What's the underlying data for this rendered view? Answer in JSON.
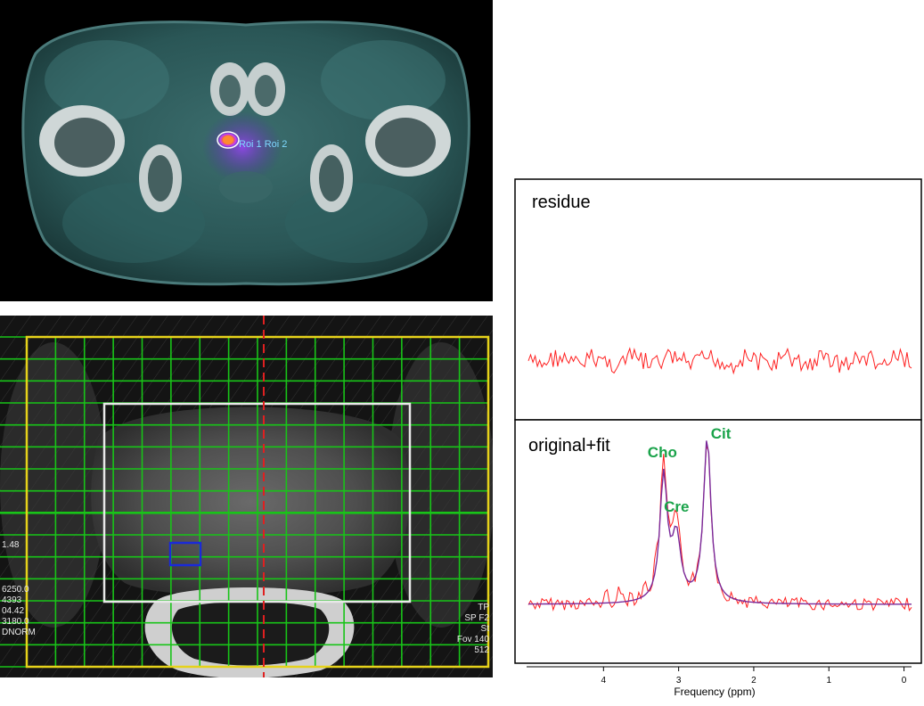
{
  "pet_ct": {
    "roi_label": "Roi 1 Roi 2"
  },
  "mri": {
    "left_readout": [
      "1.48",
      "6250.0",
      "4393",
      "04.42",
      "3180.0",
      "DNORM"
    ],
    "right_readout": [
      "TP",
      "SP F2",
      "St",
      "Fov 140",
      "512"
    ]
  },
  "spectra": {
    "residue_label": "residue",
    "fit_label": "original+fit",
    "peaks": [
      {
        "name": "Cho",
        "ppm": 3.2
      },
      {
        "name": "Cre",
        "ppm": 3.03
      },
      {
        "name": "Cit",
        "ppm": 2.62
      }
    ],
    "x_axis": {
      "label": "Frequency (ppm)",
      "ticks": [
        "4",
        "3",
        "2",
        "1",
        "0"
      ],
      "range": [
        5.0,
        -0.1
      ]
    },
    "colors": {
      "original": "#ff2020",
      "fit": "#7a2a9a",
      "peak_label": "#1aa34a",
      "mri_grid": "#18c418",
      "mri_border": "#e6d21a",
      "mri_center_line": "#e02020",
      "voxel": "#1a2ad8",
      "roi": "#ff8a30"
    }
  }
}
